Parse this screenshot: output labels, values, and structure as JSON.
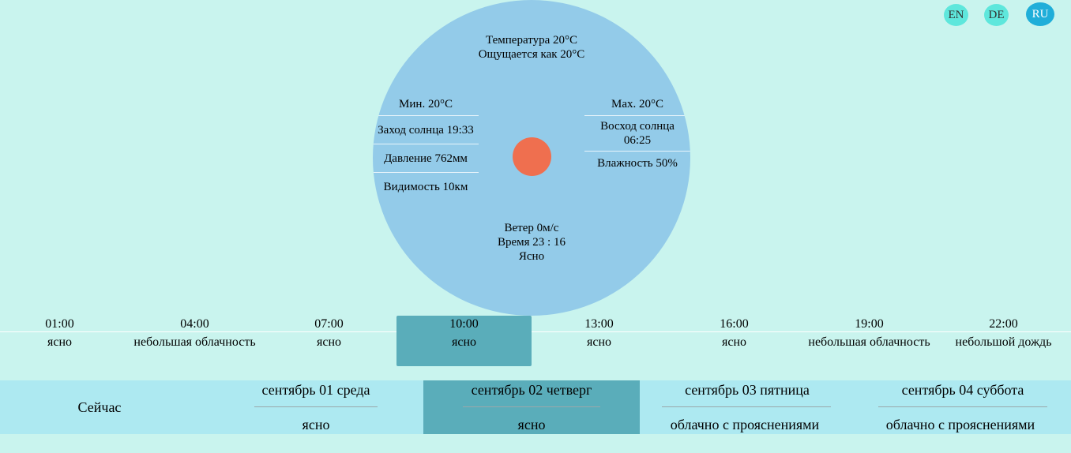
{
  "languages": [
    {
      "code": "EN"
    },
    {
      "code": "DE"
    },
    {
      "code": "RU",
      "active": true
    }
  ],
  "current": {
    "temperature": "Температура 20°C",
    "feels_like": "Ощущается как 20°C",
    "min": "Мин. 20°C",
    "sunset": "Заход солнца 19:33",
    "pressure": "Давление 762мм",
    "visibility": "Видимость 10км",
    "max": "Max. 20°C",
    "sunrise_label": "Восход солнца",
    "sunrise_time": "06:25",
    "humidity": "Влажность 50%",
    "wind": "Ветер 0м/с",
    "time": "Время 23 : 16",
    "condition": "Ясно"
  },
  "colors": {
    "background": "#c9f4ee",
    "circle": "#93cbe9",
    "sun": "#ef6f4f",
    "selected": "#5aadba",
    "daily_bar": "#ade9f1"
  },
  "hourly": [
    {
      "time": "01:00",
      "desc": "ясно"
    },
    {
      "time": "04:00",
      "desc": "небольшая облачность"
    },
    {
      "time": "07:00",
      "desc": "ясно"
    },
    {
      "time": "10:00",
      "desc": "ясно",
      "selected": true
    },
    {
      "time": "13:00",
      "desc": "ясно"
    },
    {
      "time": "16:00",
      "desc": "ясно"
    },
    {
      "time": "19:00",
      "desc": "небольшая облачность"
    },
    {
      "time": "22:00",
      "desc": "небольшой дождь"
    }
  ],
  "daily": {
    "now_label": "Сейчас",
    "days": [
      {
        "name": "сентябрь 01 среда",
        "desc": "ясно"
      },
      {
        "name": "сентябрь 02 четверг",
        "desc": "ясно",
        "selected": true
      },
      {
        "name": "сентябрь 03 пятница",
        "desc": "облачно с прояснениями"
      },
      {
        "name": "сентябрь 04 суббота",
        "desc": "облачно с прояснениями"
      }
    ]
  }
}
